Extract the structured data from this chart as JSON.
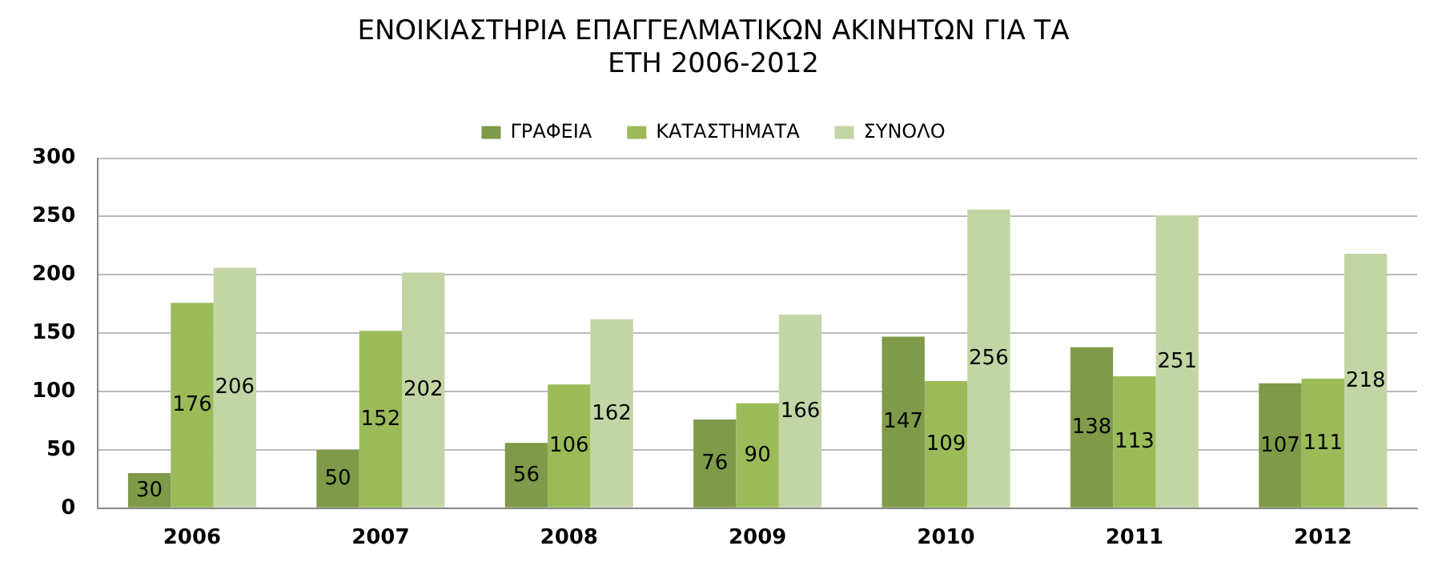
{
  "chart_data": {
    "type": "bar",
    "title": [
      "ΕΝΟΙΚΙΑΣΤΗΡΙΑ ΕΠΑΓΓΕΛΜΑΤΙΚΩΝ ΑΚΙΝΗΤΩΝ ΓΙΑ ΤΑ",
      "ΕΤΗ 2006-2012"
    ],
    "categories": [
      "2006",
      "2007",
      "2008",
      "2009",
      "2010",
      "2011",
      "2012"
    ],
    "series": [
      {
        "name": "ΓΡΑΦΕΙΑ",
        "color": "#7f9a48",
        "values": [
          30,
          50,
          56,
          76,
          147,
          138,
          107
        ]
      },
      {
        "name": "ΚΑΤΑΣΤΗΜΑΤΑ",
        "color": "#9bbb59",
        "values": [
          176,
          152,
          106,
          90,
          109,
          113,
          111
        ]
      },
      {
        "name": "ΣΥΝΟΛΟ",
        "color": "#c3d5a5",
        "values": [
          206,
          202,
          162,
          166,
          256,
          251,
          218
        ]
      }
    ],
    "ylim": [
      0,
      300
    ],
    "yticks": [
      0,
      50,
      100,
      150,
      200,
      250,
      300
    ],
    "grid": "y",
    "legend": "top",
    "data_labels": true
  }
}
